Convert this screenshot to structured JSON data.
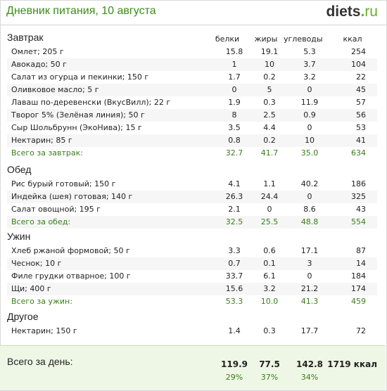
{
  "header": {
    "title": "Дневник питания, 10 августа",
    "brand_main": "diets",
    "brand_dot": ".",
    "brand_tld": "ru"
  },
  "columns": {
    "protein": "белки",
    "fat": "жиры",
    "carbs": "углеводы",
    "kcal": "ккал"
  },
  "sections": [
    {
      "title": "Завтрак",
      "rows": [
        {
          "name": "Омлет; 205 г",
          "p": "15.8",
          "f": "19.1",
          "c": "5.3",
          "k": "254"
        },
        {
          "name": "Авокадо; 50 г",
          "p": "1",
          "f": "10",
          "c": "3.7",
          "k": "104"
        },
        {
          "name": "Салат из огурца и пекинки; 150 г",
          "p": "1.7",
          "f": "0.2",
          "c": "3.2",
          "k": "22"
        },
        {
          "name": "Оливковое масло; 5 г",
          "p": "0",
          "f": "5",
          "c": "0",
          "k": "45"
        },
        {
          "name": "Лаваш по-деревенски (ВкусВилл); 22 г",
          "p": "1.9",
          "f": "0.3",
          "c": "11.9",
          "k": "57"
        },
        {
          "name": "Творог 5% (Зелёная линия); 50 г",
          "p": "8",
          "f": "2.5",
          "c": "0.9",
          "k": "56"
        },
        {
          "name": "Сыр Шольбрунн (ЭкоНива); 15 г",
          "p": "3.5",
          "f": "4.4",
          "c": "0",
          "k": "53"
        },
        {
          "name": "Нектарин; 85 г",
          "p": "0.8",
          "f": "0.2",
          "c": "10",
          "k": "41"
        }
      ],
      "total": {
        "name": "Всего за завтрак:",
        "p": "32.7",
        "f": "41.7",
        "c": "35.0",
        "k": "634"
      }
    },
    {
      "title": "Обед",
      "rows": [
        {
          "name": "Рис бурый готовый; 150 г",
          "p": "4.1",
          "f": "1.1",
          "c": "40.2",
          "k": "186"
        },
        {
          "name": "Индейка (шея) готовая; 140 г",
          "p": "26.3",
          "f": "24.4",
          "c": "0",
          "k": "325"
        },
        {
          "name": "Салат овощной; 195 г",
          "p": "2.1",
          "f": "0",
          "c": "8.6",
          "k": "43"
        }
      ],
      "total": {
        "name": "Всего за обед:",
        "p": "32.5",
        "f": "25.5",
        "c": "48.8",
        "k": "554"
      }
    },
    {
      "title": "Ужин",
      "rows": [
        {
          "name": "Хлеб ржаной формовой; 50 г",
          "p": "3.3",
          "f": "0.6",
          "c": "17.1",
          "k": "87"
        },
        {
          "name": "Чеснок; 10 г",
          "p": "0.7",
          "f": "0.1",
          "c": "3",
          "k": "14"
        },
        {
          "name": "Филе грудки отварное; 100 г",
          "p": "33.7",
          "f": "6.1",
          "c": "0",
          "k": "184"
        },
        {
          "name": "Щи; 400 г",
          "p": "15.6",
          "f": "3.2",
          "c": "21.2",
          "k": "174"
        }
      ],
      "total": {
        "name": "Всего за ужин:",
        "p": "53.3",
        "f": "10.0",
        "c": "41.3",
        "k": "459"
      }
    },
    {
      "title": "Другое",
      "rows": [
        {
          "name": "Нектарин; 150 г",
          "p": "1.4",
          "f": "0.3",
          "c": "17.7",
          "k": "72"
        }
      ]
    }
  ],
  "day_total": {
    "label": "Всего за день:",
    "p": "119.9",
    "f": "77.5",
    "c": "142.8",
    "k": "1719 ккал",
    "pp": "29%",
    "fp": "37%",
    "cp": "34%"
  },
  "colors": {
    "green_text": "#3a7d19",
    "brand_green": "#6aae2a",
    "title_green": "#3c8c1c"
  }
}
